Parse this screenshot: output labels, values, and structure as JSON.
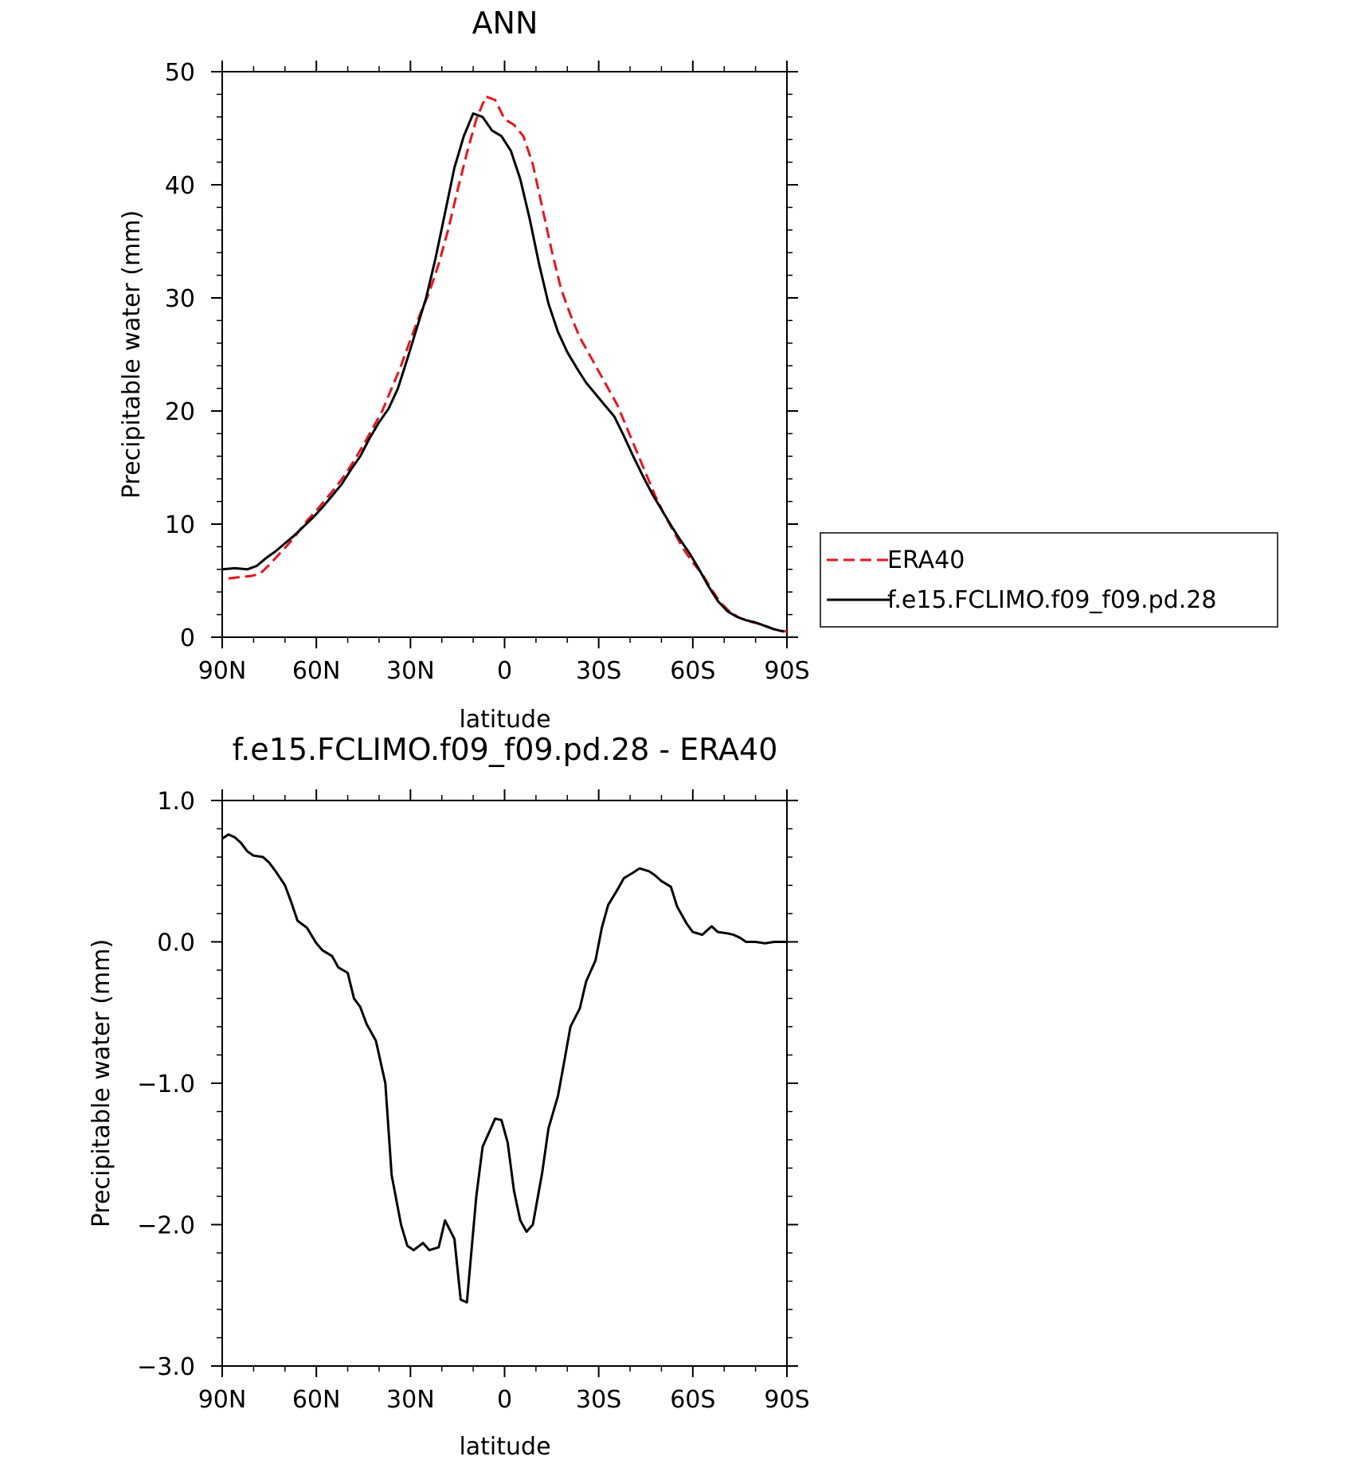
{
  "chart_data": [
    {
      "type": "line",
      "title": "ANN",
      "xlabel": "latitude",
      "ylabel": "Precipitable water (mm)",
      "xlim": [
        90,
        -90
      ],
      "ylim": [
        0,
        50
      ],
      "x_ticks": [
        90,
        60,
        30,
        0,
        -30,
        -60,
        -90
      ],
      "x_tick_labels": [
        "90N",
        "60N",
        "30N",
        "0",
        "30S",
        "60S",
        "90S"
      ],
      "y_ticks": [
        0,
        10,
        20,
        30,
        40,
        50
      ],
      "y_tick_labels": [
        "0",
        "10",
        "20",
        "30",
        "40",
        "50"
      ],
      "legend_position": "right",
      "series": [
        {
          "name": "ERA40",
          "color": "#e8141e",
          "dash": "dashed",
          "x": [
            88,
            85,
            81,
            78,
            75,
            72,
            69,
            66,
            63,
            60,
            57,
            54,
            51,
            48,
            45,
            42,
            39,
            36,
            33,
            30,
            27,
            24,
            21,
            18,
            15,
            12,
            9,
            6,
            3,
            0,
            -3,
            -6,
            -9,
            -12,
            -15,
            -18,
            -21,
            -24,
            -27,
            -30,
            -33,
            -36,
            -39,
            -42,
            -45,
            -48,
            -51,
            -54,
            -57,
            -60,
            -63,
            -66,
            -69,
            -72,
            -75,
            -78,
            -81,
            -84,
            -87,
            -90
          ],
          "y": [
            5.2,
            5.3,
            5.4,
            5.6,
            6.4,
            7.3,
            8.2,
            9.2,
            10.3,
            11.2,
            12.2,
            13.2,
            14.3,
            15.6,
            17.0,
            18.5,
            20.0,
            22.0,
            24.0,
            26.3,
            28.5,
            30.5,
            33.0,
            36.0,
            39.5,
            42.8,
            45.8,
            47.8,
            47.5,
            45.8,
            45.3,
            44.3,
            41.8,
            38.0,
            34.2,
            30.8,
            28.5,
            26.5,
            25.0,
            23.5,
            22.0,
            20.5,
            18.5,
            16.5,
            14.5,
            12.5,
            10.8,
            9.3,
            7.8,
            6.6,
            5.6,
            4.2,
            3.0,
            2.2,
            1.7,
            1.4,
            1.2,
            0.9,
            0.6,
            0.5
          ]
        },
        {
          "name": "f.e15.FCLIMO.f09_f09.pd.28",
          "color": "#000000",
          "dash": "solid",
          "x": [
            90,
            86,
            82,
            79,
            76,
            73,
            70,
            67,
            64,
            61,
            58,
            55,
            52,
            49,
            46,
            43,
            40,
            37,
            34,
            31,
            28,
            25,
            22,
            19,
            16,
            13,
            10,
            7,
            4,
            1,
            -2,
            -5,
            -8,
            -11,
            -14,
            -17,
            -20,
            -23,
            -26,
            -29,
            -32,
            -35,
            -38,
            -41,
            -44,
            -47,
            -50,
            -53,
            -56,
            -59,
            -62,
            -65,
            -68,
            -71,
            -74,
            -77,
            -80,
            -83,
            -86,
            -89
          ],
          "y": [
            6.0,
            6.1,
            6.0,
            6.3,
            7.0,
            7.6,
            8.3,
            9.0,
            9.8,
            10.6,
            11.5,
            12.5,
            13.5,
            14.8,
            16.0,
            17.6,
            19.0,
            20.2,
            22.0,
            24.6,
            27.3,
            30.0,
            33.5,
            37.5,
            41.5,
            44.3,
            46.3,
            46.0,
            44.8,
            44.3,
            43.0,
            40.5,
            37.0,
            33.0,
            29.5,
            27.0,
            25.2,
            23.8,
            22.5,
            21.5,
            20.5,
            19.5,
            17.8,
            16.0,
            14.3,
            12.7,
            11.3,
            9.9,
            8.6,
            7.4,
            6.0,
            4.5,
            3.2,
            2.3,
            1.8,
            1.5,
            1.3,
            1.0,
            0.7,
            0.5
          ]
        }
      ]
    },
    {
      "type": "line",
      "title": "f.e15.FCLIMO.f09_f09.pd.28 - ERA40",
      "xlabel": "latitude",
      "ylabel": "Precipitable water (mm)",
      "xlim": [
        90,
        -90
      ],
      "ylim": [
        -3.0,
        1.0
      ],
      "x_ticks": [
        90,
        60,
        30,
        0,
        -30,
        -60,
        -90
      ],
      "x_tick_labels": [
        "90N",
        "60N",
        "30N",
        "0",
        "30S",
        "60S",
        "90S"
      ],
      "y_ticks": [
        1.0,
        0.0,
        -1.0,
        -2.0,
        -3.0
      ],
      "y_tick_labels": [
        "1.0",
        "0.0",
        "−1.0",
        "−2.0",
        "−3.0"
      ],
      "series": [
        {
          "color": "#000000",
          "dash": "solid",
          "x": [
            90,
            88,
            86,
            84,
            82,
            80,
            77,
            75,
            73,
            70,
            68,
            66,
            63,
            60,
            58,
            55,
            53,
            50,
            48,
            46,
            44,
            41,
            38,
            36,
            33,
            31,
            29,
            26,
            24,
            21,
            19,
            16,
            14,
            12,
            9,
            7,
            5,
            3,
            1,
            -1,
            -3,
            -5,
            -7,
            -9,
            -12,
            -14,
            -17,
            -19,
            -21,
            -24,
            -26,
            -29,
            -31,
            -33,
            -36,
            -38,
            -41,
            -43,
            -46,
            -48,
            -50,
            -53,
            -55,
            -58,
            -60,
            -63,
            -66,
            -68,
            -71,
            -73,
            -75,
            -77,
            -80,
            -83,
            -86,
            -88,
            -90
          ],
          "y": [
            0.73,
            0.76,
            0.74,
            0.7,
            0.64,
            0.61,
            0.6,
            0.56,
            0.5,
            0.4,
            0.28,
            0.15,
            0.1,
            -0.01,
            -0.06,
            -0.1,
            -0.18,
            -0.22,
            -0.4,
            -0.46,
            -0.58,
            -0.7,
            -1.0,
            -1.65,
            -2.0,
            -2.15,
            -2.18,
            -2.13,
            -2.18,
            -2.16,
            -1.97,
            -2.1,
            -2.53,
            -2.55,
            -1.8,
            -1.45,
            -1.35,
            -1.25,
            -1.26,
            -1.42,
            -1.76,
            -1.97,
            -2.05,
            -2.0,
            -1.63,
            -1.32,
            -1.09,
            -0.85,
            -0.6,
            -0.47,
            -0.28,
            -0.13,
            0.1,
            0.26,
            0.37,
            0.45,
            0.49,
            0.52,
            0.5,
            0.47,
            0.43,
            0.39,
            0.25,
            0.13,
            0.07,
            0.05,
            0.11,
            0.07,
            0.06,
            0.05,
            0.03,
            0.0,
            0.0,
            -0.01,
            0.0,
            0.0,
            0.0
          ]
        }
      ]
    }
  ]
}
